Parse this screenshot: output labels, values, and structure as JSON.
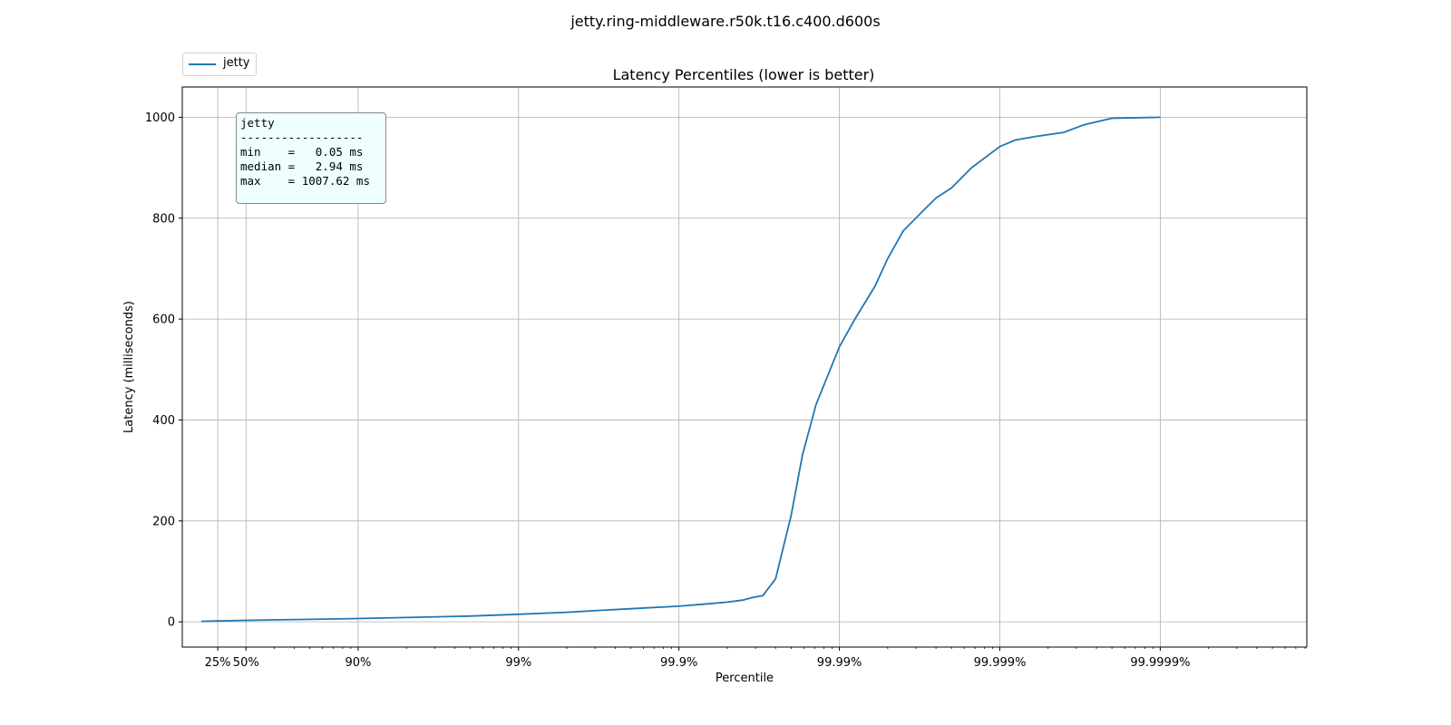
{
  "page": {
    "suptitle": "jetty.ring-middleware.r50k.t16.c400.d600s"
  },
  "chart_data": {
    "type": "line",
    "title": "Latency Percentiles (lower is better)",
    "xlabel": "Percentile",
    "ylabel": "Latency (milliseconds)",
    "x_scale": "log of 1/(1 - percentile)",
    "xlim": [
      0,
      99.9999
    ],
    "ylim": [
      -50,
      1060
    ],
    "grid": true,
    "legend_placement": "upper-left, above plot",
    "x_ticks": [
      {
        "label": "25%",
        "value": 25
      },
      {
        "label": "50%",
        "value": 50
      },
      {
        "label": "90%",
        "value": 90
      },
      {
        "label": "99%",
        "value": 99
      },
      {
        "label": "99.9%",
        "value": 99.9
      },
      {
        "label": "99.99%",
        "value": 99.99
      },
      {
        "label": "99.999%",
        "value": 99.999
      },
      {
        "label": "99.9999%",
        "value": 99.9999
      }
    ],
    "y_ticks": [
      0,
      200,
      400,
      600,
      800,
      1000
    ],
    "series": [
      {
        "name": "jetty",
        "color": "#1f77b4",
        "x": [
          5,
          25,
          50,
          70,
          90,
          95,
          98,
          99,
          99.5,
          99.7,
          99.8,
          99.9,
          99.93,
          99.95,
          99.96,
          99.965,
          99.97,
          99.975,
          99.98,
          99.983,
          99.986,
          99.99,
          99.992,
          99.994,
          99.995,
          99.996,
          99.997,
          99.9975,
          99.998,
          99.9985,
          99.999,
          99.9992,
          99.9994,
          99.9996,
          99.9997,
          99.9998,
          99.9999
        ],
        "y": [
          1,
          1.8,
          2.94,
          4,
          6.5,
          8.5,
          11.5,
          15,
          19,
          23,
          26,
          31,
          35,
          39,
          43,
          48,
          52,
          85,
          210,
          330,
          430,
          545,
          600,
          665,
          720,
          775,
          815,
          840,
          860,
          900,
          942,
          955,
          962,
          970,
          985,
          998,
          1000
        ]
      }
    ],
    "stats": {
      "title": "jetty",
      "separator": "------------------",
      "lines": [
        "min    =   0.05 ms",
        "median =   2.94 ms",
        "max    = 1007.62 ms"
      ]
    }
  }
}
